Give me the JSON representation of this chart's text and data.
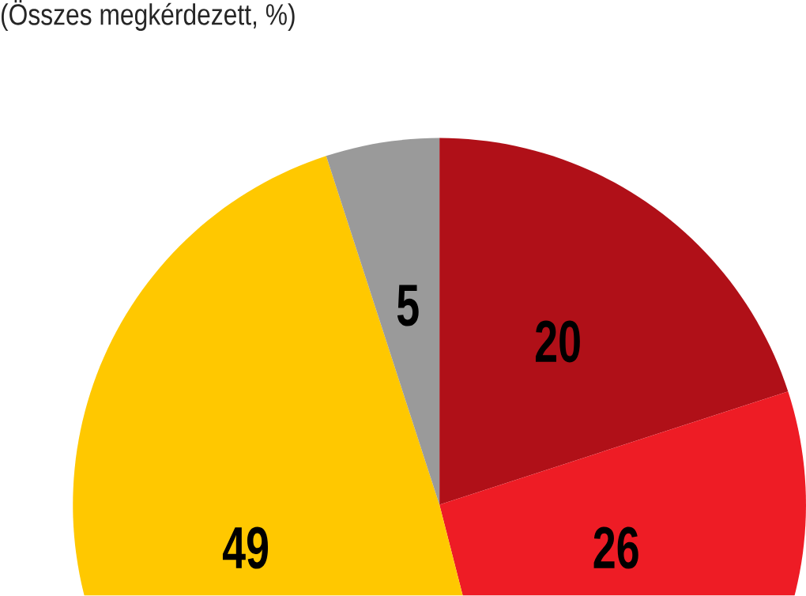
{
  "chart_data": {
    "type": "pie",
    "subtitle": "(Összes megkérdezett, %)",
    "categories": [
      null,
      null,
      null,
      null
    ],
    "values": [
      20,
      26,
      49,
      5
    ],
    "colors": [
      "#b01018",
      "#ee1c25",
      "#ffc800",
      "#9a9a9a"
    ],
    "data_labels": true
  }
}
